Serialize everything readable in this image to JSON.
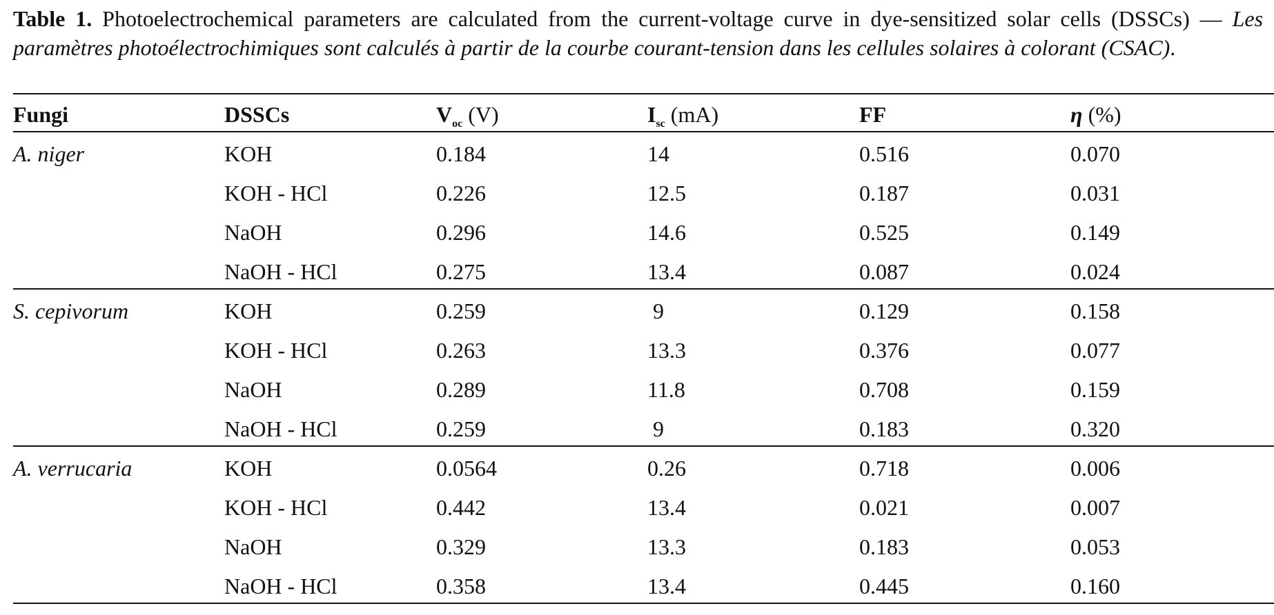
{
  "caption": {
    "label": "Table 1.",
    "english": "Photoelectrochemical parameters are calculated from the current-voltage curve in dye-sensitized solar cells (DSSCs) — ",
    "french": "Les paramètres photoélectrochimiques sont calculés à partir de la courbe courant-tension dans les cellules solaires à colorant (CSAC)",
    "end": "."
  },
  "headers": {
    "fungi": "Fungi",
    "dsscs": "DSSCs",
    "voc_sym": "V",
    "voc_sub": "oc",
    "voc_unit": "(V)",
    "isc_sym": "I",
    "isc_sub": "sc",
    "isc_unit": "(mA)",
    "ff": "FF",
    "eta_sym": "η",
    "eta_unit": "(%)"
  },
  "groups": [
    {
      "fungus": "A. niger",
      "rows": [
        {
          "dsscs": "KOH",
          "voc": "0.184",
          "isc": "14",
          "ff": "0.516",
          "eta": "0.070"
        },
        {
          "dsscs": "KOH - HCl",
          "voc": "0.226",
          "isc": "12.5",
          "ff": "0.187",
          "eta": "0.031"
        },
        {
          "dsscs": "NaOH",
          "voc": "0.296",
          "isc": "14.6",
          "ff": "0.525",
          "eta": "0.149"
        },
        {
          "dsscs": "NaOH - HCl",
          "voc": "0.275",
          "isc": "13.4",
          "ff": "0.087",
          "eta": "0.024"
        }
      ]
    },
    {
      "fungus": "S. cepivorum",
      "rows": [
        {
          "dsscs": "KOH",
          "voc": "0.259",
          "isc": "9",
          "ff": "0.129",
          "eta": "0.158"
        },
        {
          "dsscs": "KOH - HCl",
          "voc": "0.263",
          "isc": "13.3",
          "ff": "0.376",
          "eta": "0.077"
        },
        {
          "dsscs": "NaOH",
          "voc": "0.289",
          "isc": "11.8",
          "ff": "0.708",
          "eta": "0.159"
        },
        {
          "dsscs": "NaOH - HCl",
          "voc": "0.259",
          "isc": "9",
          "ff": "0.183",
          "eta": "0.320"
        }
      ]
    },
    {
      "fungus": "A. verrucaria",
      "rows": [
        {
          "dsscs": "KOH",
          "voc": "0.0564",
          "isc": "0.26",
          "ff": "0.718",
          "eta": "0.006"
        },
        {
          "dsscs": "KOH - HCl",
          "voc": "0.442",
          "isc": "13.4",
          "ff": "0.021",
          "eta": "0.007"
        },
        {
          "dsscs": "NaOH",
          "voc": "0.329",
          "isc": "13.3",
          "ff": "0.183",
          "eta": "0.053"
        },
        {
          "dsscs": "NaOH - HCl",
          "voc": "0.358",
          "isc": "13.4",
          "ff": "0.445",
          "eta": "0.160"
        }
      ]
    }
  ]
}
